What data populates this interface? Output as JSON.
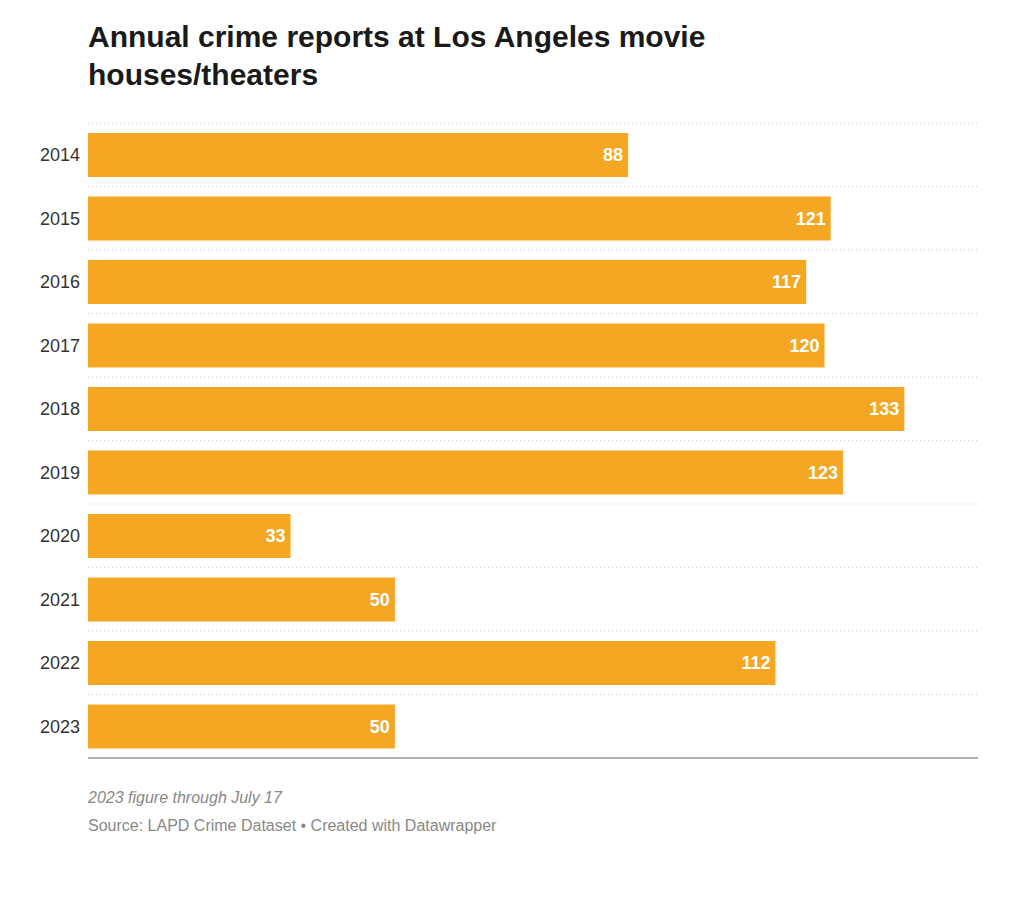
{
  "chart_data": {
    "type": "bar",
    "title": "Annual crime reports at Los Angeles movie\nhouses/theaters",
    "categories": [
      "2014",
      "2015",
      "2016",
      "2017",
      "2018",
      "2019",
      "2020",
      "2021",
      "2022",
      "2023"
    ],
    "values": [
      88,
      121,
      117,
      120,
      133,
      123,
      33,
      50,
      112,
      50
    ],
    "color": "#F5A623",
    "orientation": "horizontal",
    "xlim": [
      0,
      145
    ],
    "data_labels": true,
    "tick_labels": "y",
    "grid": true,
    "annotations": [
      "2023 figure through July 17",
      "Source: LAPD Crime Dataset • Created with Datawrapper"
    ]
  }
}
